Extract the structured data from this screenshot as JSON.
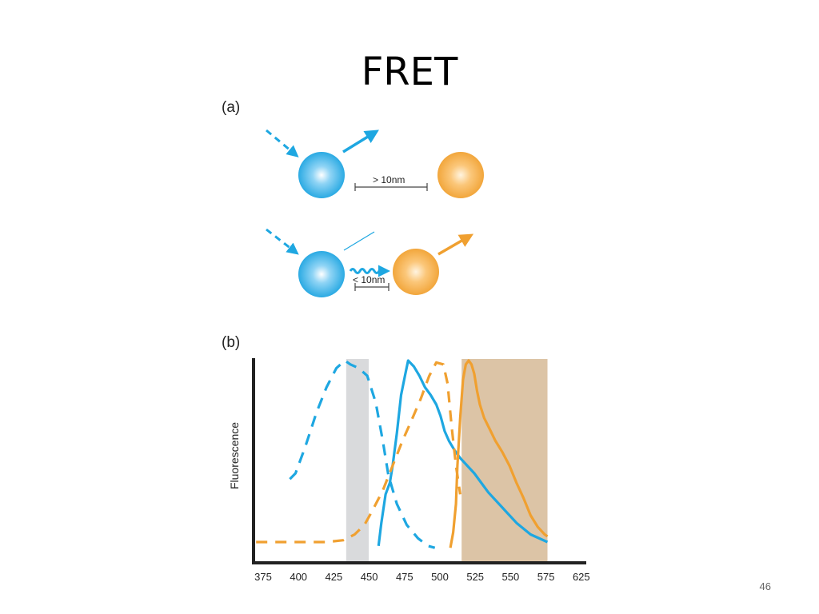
{
  "slide": {
    "title": "FRET",
    "page_number": "46"
  },
  "panel_a": {
    "label": "(a)",
    "distance_far": "> 10nm",
    "distance_near": "< 10nm"
  },
  "panel_b": {
    "label": "(b)"
  },
  "colors": {
    "donor": "#1ea7e1",
    "acceptor": "#f0a030",
    "excitation_band": "#d9dadc",
    "emission_band": "#dcc4a6"
  },
  "chart_data": {
    "type": "line",
    "ylabel": "Fluorescence",
    "xlabel": "",
    "xlim": [
      368,
      620
    ],
    "ylim": [
      0,
      1
    ],
    "x_ticks": [
      "375",
      "400",
      "425",
      "450",
      "475",
      "500",
      "525",
      "550",
      "575",
      "625"
    ],
    "bands": [
      {
        "x0": 434,
        "x1": 450,
        "color": "#d9dadc"
      },
      {
        "x0": 516,
        "x1": 577,
        "color": "#dcc4a6"
      }
    ],
    "series": [
      {
        "color": "#1ea7e1",
        "dashed": true,
        "x": [
          394,
          398,
          405,
          413,
          420,
          427,
          433,
          437,
          443,
          449,
          455,
          460,
          464,
          470,
          477,
          485,
          492,
          497
        ],
        "y": [
          0.38,
          0.41,
          0.55,
          0.73,
          0.86,
          0.96,
          1.0,
          0.98,
          0.96,
          0.92,
          0.78,
          0.58,
          0.4,
          0.25,
          0.14,
          0.07,
          0.03,
          0.02
        ]
      },
      {
        "color": "#1ea7e1",
        "dashed": false,
        "x": [
          457,
          459,
          462,
          465,
          467,
          470,
          473,
          476,
          478,
          482,
          486,
          490,
          494,
          498,
          501,
          504,
          507,
          511,
          515,
          520,
          525,
          530,
          535,
          545,
          555,
          565,
          577
        ],
        "y": [
          0.03,
          0.15,
          0.3,
          0.36,
          0.45,
          0.62,
          0.82,
          0.93,
          1.0,
          0.97,
          0.92,
          0.86,
          0.82,
          0.77,
          0.71,
          0.63,
          0.58,
          0.53,
          0.49,
          0.45,
          0.41,
          0.36,
          0.31,
          0.23,
          0.15,
          0.09,
          0.05
        ]
      },
      {
        "color": "#f0a030",
        "dashed": true,
        "x": [
          370,
          395,
          420,
          432,
          440,
          447,
          453,
          460,
          467,
          474,
          480,
          487,
          493,
          498,
          503,
          506,
          509,
          512,
          515
        ],
        "y": [
          0.05,
          0.05,
          0.05,
          0.06,
          0.09,
          0.14,
          0.22,
          0.32,
          0.45,
          0.58,
          0.68,
          0.8,
          0.92,
          0.99,
          0.98,
          0.88,
          0.65,
          0.45,
          0.3
        ]
      },
      {
        "color": "#f0a030",
        "dashed": false,
        "x": [
          508,
          510,
          512,
          513,
          515,
          517,
          519,
          521,
          523,
          525,
          527,
          529,
          532,
          536,
          540,
          545,
          550,
          555,
          560,
          565,
          570,
          575,
          577
        ],
        "y": [
          0.02,
          0.1,
          0.25,
          0.45,
          0.7,
          0.9,
          0.98,
          1.0,
          0.98,
          0.93,
          0.84,
          0.77,
          0.7,
          0.64,
          0.58,
          0.52,
          0.45,
          0.36,
          0.28,
          0.19,
          0.13,
          0.09,
          0.08
        ]
      }
    ]
  }
}
